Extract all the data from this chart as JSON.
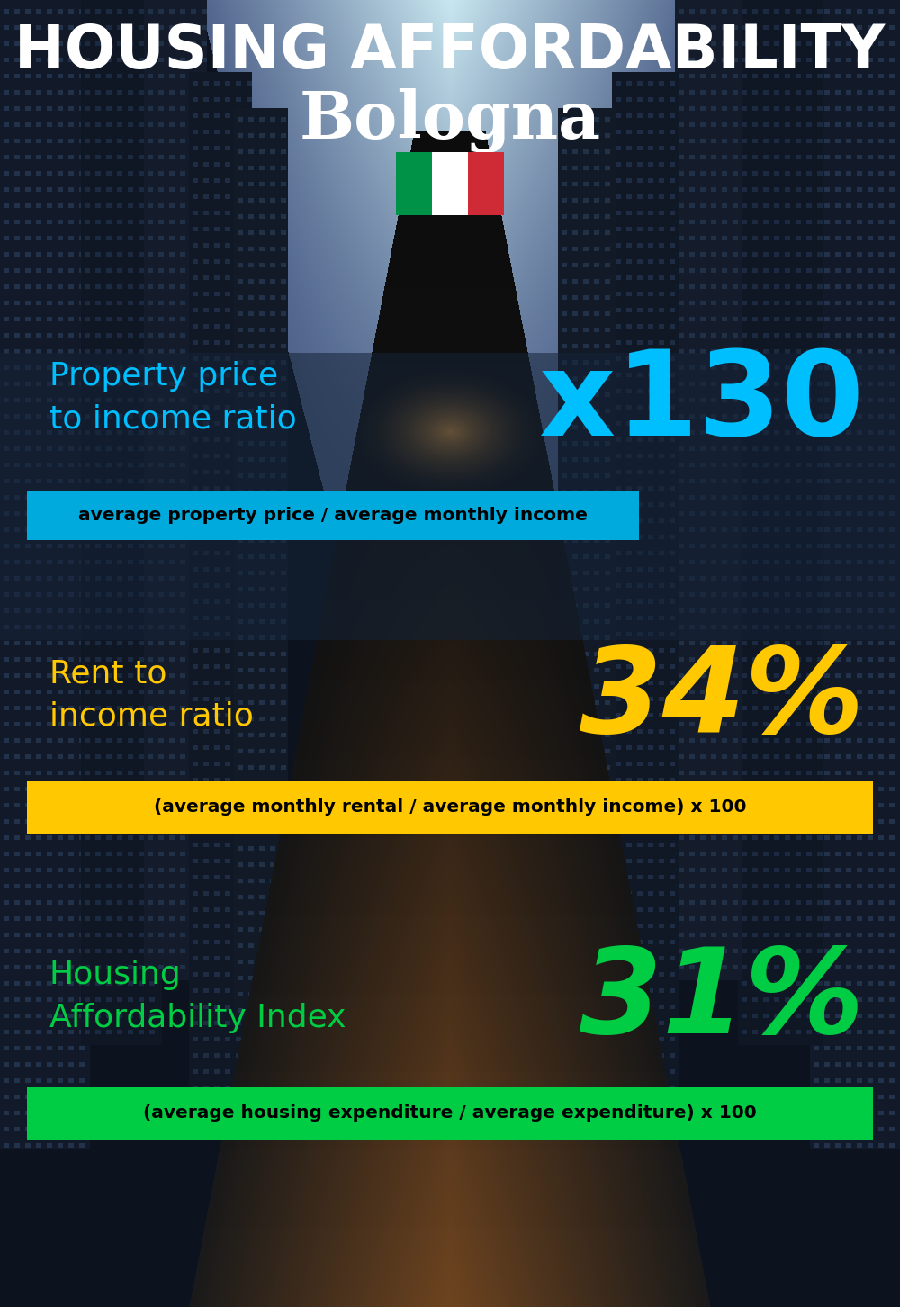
{
  "title_line1": "HOUSING AFFORDABILITY",
  "title_line2": "Bologna",
  "bg_color": "#0a0f1a",
  "title1_color": "#ffffff",
  "title2_color": "#ffffff",
  "section1_label": "Property price\nto income ratio",
  "section1_value": "x130",
  "section1_label_color": "#00bfff",
  "section1_value_color": "#00bfff",
  "section1_formula": "average property price / average monthly income",
  "section1_formula_bg": "#00aadd",
  "section2_label": "Rent to\nincome ratio",
  "section2_value": "34%",
  "section2_label_color": "#ffc800",
  "section2_value_color": "#ffc800",
  "section2_formula": "(average monthly rental / average monthly income) x 100",
  "section2_formula_bg": "#ffc800",
  "section3_label": "Housing\nAffordability Index",
  "section3_value": "31%",
  "section3_label_color": "#00cc44",
  "section3_value_color": "#00cc44",
  "section3_formula": "(average housing expenditure / average expenditure) x 100",
  "section3_formula_bg": "#00cc44",
  "flag_green": "#009246",
  "flag_white": "#ffffff",
  "flag_red": "#ce2b37"
}
